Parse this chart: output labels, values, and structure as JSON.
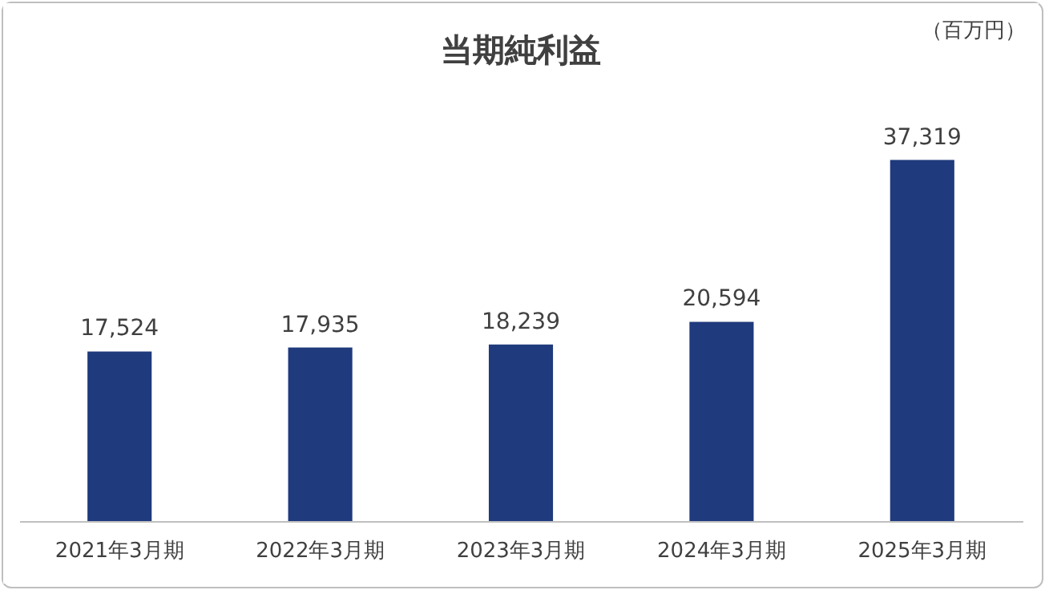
{
  "chart_data": {
    "type": "bar",
    "title": "当期純利益",
    "annotations": [
      "（百万円）"
    ],
    "categories": [
      "2021年3月期",
      "2022年3月期",
      "2023年3月期",
      "2024年3月期",
      "2025年3月期"
    ],
    "values": [
      17524,
      17935,
      18239,
      20594,
      37319
    ],
    "color": "#1f3a7d",
    "value_labels": [
      "17,524",
      "17,935",
      "18,239",
      "20,594",
      "37,319"
    ]
  }
}
